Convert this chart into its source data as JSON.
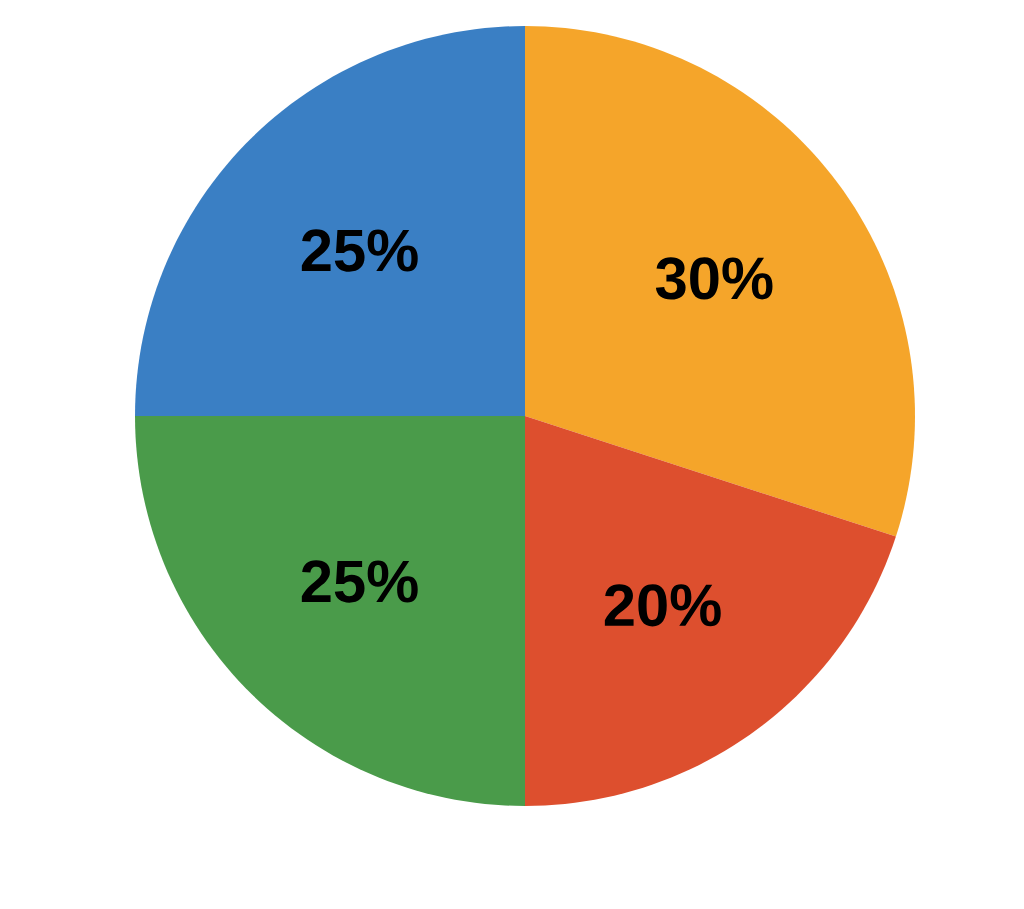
{
  "chart_data": {
    "type": "pie",
    "categories": [
      null,
      null,
      null,
      null
    ],
    "values": [
      30,
      20,
      25,
      25
    ],
    "colors": [
      "#f5a52a",
      "#dd4f2e",
      "#4a9b4a",
      "#3a7fc4"
    ],
    "value_labels": [
      "30%",
      "20%",
      "25%",
      "25%"
    ]
  }
}
